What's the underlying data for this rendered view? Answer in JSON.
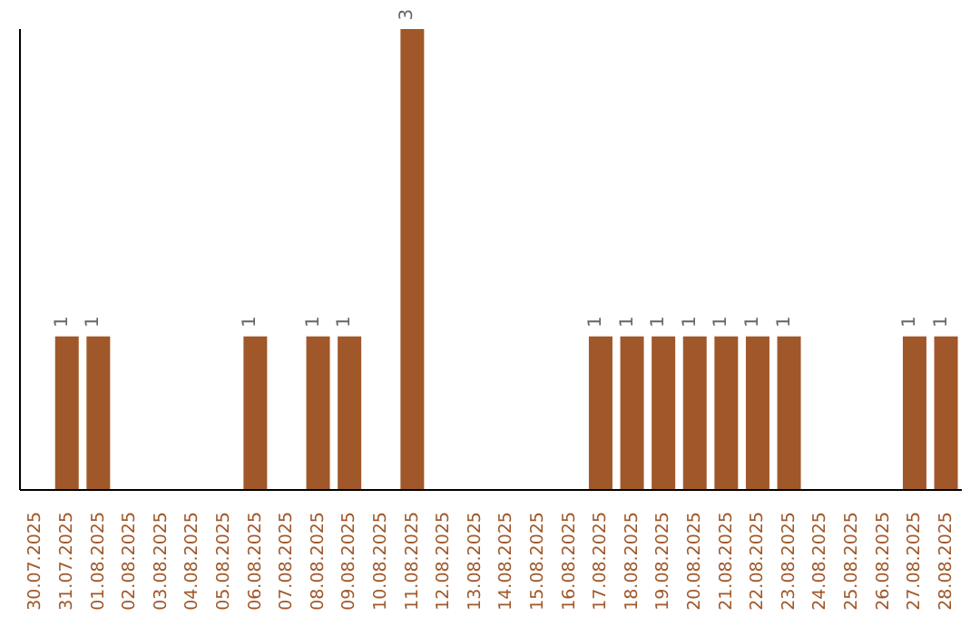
{
  "chart_data": {
    "type": "bar",
    "categories": [
      "30.07.2025",
      "31.07.2025",
      "01.08.2025",
      "02.08.2025",
      "03.08.2025",
      "04.08.2025",
      "05.08.2025",
      "06.08.2025",
      "07.08.2025",
      "08.08.2025",
      "09.08.2025",
      "10.08.2025",
      "11.08.2025",
      "12.08.2025",
      "13.08.2025",
      "14.08.2025",
      "15.08.2025",
      "16.08.2025",
      "17.08.2025",
      "18.08.2025",
      "19.08.2025",
      "20.08.2025",
      "21.08.2025",
      "22.08.2025",
      "23.08.2025",
      "24.08.2025",
      "25.08.2025",
      "26.08.2025",
      "27.08.2025",
      "28.08.2025"
    ],
    "values": [
      0,
      1,
      1,
      0,
      0,
      0,
      0,
      1,
      0,
      1,
      1,
      0,
      3,
      0,
      0,
      0,
      0,
      0,
      1,
      1,
      1,
      1,
      1,
      1,
      1,
      0,
      0,
      0,
      1,
      1
    ],
    "value_labels": [
      null,
      "1",
      "1",
      null,
      null,
      null,
      null,
      "1",
      null,
      "1",
      "1",
      null,
      "3",
      null,
      null,
      null,
      null,
      null,
      "1",
      "1",
      "1",
      "1",
      "1",
      "1",
      "1",
      null,
      null,
      null,
      "1",
      "1"
    ],
    "color": "#a0582a",
    "ylim": [
      0,
      3
    ],
    "tick_labels": "x",
    "grid": false,
    "legend": false
  }
}
